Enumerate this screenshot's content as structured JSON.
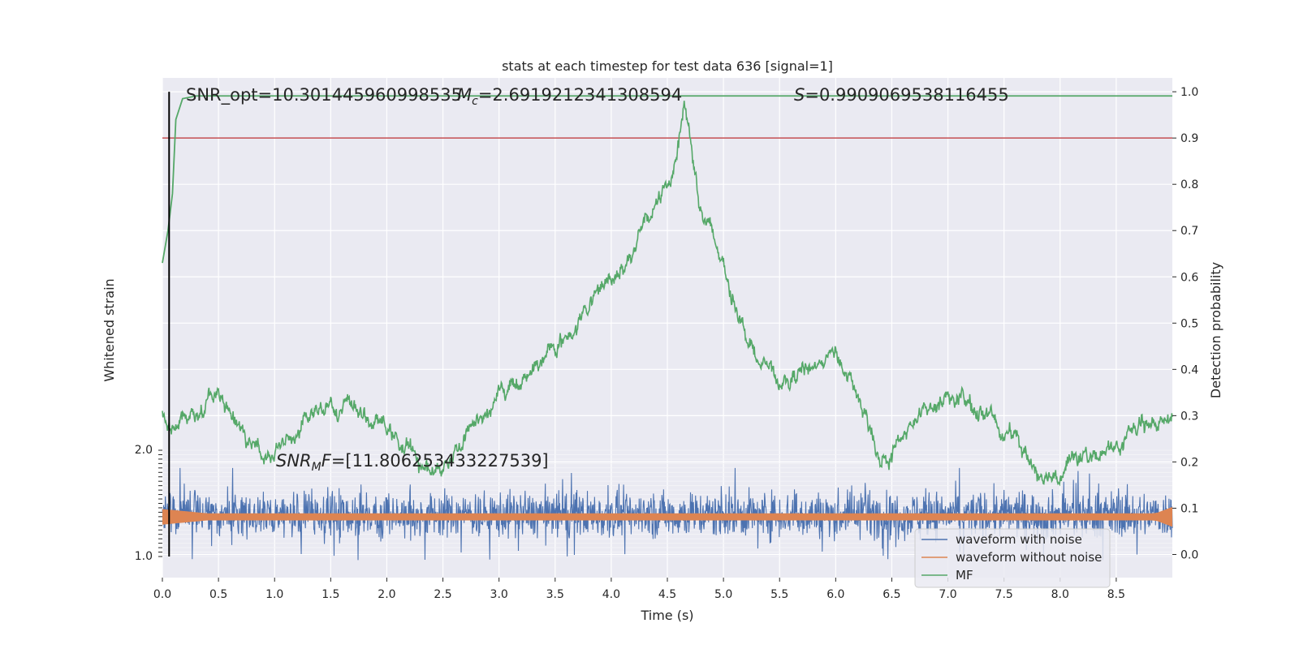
{
  "chart_data": {
    "type": "line",
    "title": "stats at each timestep for test data 636 [signal=1]",
    "xlabel": "Time (s)",
    "ylabel_left": "Whitened strain",
    "ylabel_right": "Detection probability",
    "xlim": [
      0,
      9
    ],
    "xticks": [
      "0.0",
      "0.5",
      "1.0",
      "1.5",
      "2.0",
      "2.5",
      "3.0",
      "3.5",
      "4.0",
      "4.5",
      "5.0",
      "5.5",
      "6.0",
      "6.5",
      "7.0",
      "7.5",
      "8.0",
      "8.5"
    ],
    "xtick_values": [
      0,
      0.5,
      1,
      1.5,
      2,
      2.5,
      3,
      3.5,
      4,
      4.5,
      5,
      5.5,
      6,
      6.5,
      7,
      7.5,
      8,
      8.5
    ],
    "right_ylim": [
      -0.05,
      1.03
    ],
    "right_yticks": [
      "0.0",
      "0.1",
      "0.2",
      "0.3",
      "0.4",
      "0.5",
      "0.6",
      "0.7",
      "0.8",
      "0.9",
      "1.0"
    ],
    "right_ytick_values": [
      0,
      0.1,
      0.2,
      0.3,
      0.4,
      0.5,
      0.6,
      0.7,
      0.8,
      0.9,
      1.0
    ],
    "left_ylim": [
      -1.0,
      2.0
    ],
    "left_ytick_top": "2.0",
    "left_ytick_bottom": "1.0",
    "threshold": 0.9,
    "marker_time": 0.06,
    "annotations": {
      "snr_opt": "SNR_opt=10.301445960998535",
      "mc": "M_c=2.6919212341308594",
      "s": "S=0.9909069538116455",
      "snr_mf": "SNR_MF=[11.806253433227539]"
    },
    "mf_key_points": [
      [
        0.0,
        0.3
      ],
      [
        0.3,
        0.3
      ],
      [
        0.45,
        0.35
      ],
      [
        0.8,
        0.22
      ],
      [
        1.2,
        0.25
      ],
      [
        1.5,
        0.34
      ],
      [
        2.0,
        0.27
      ],
      [
        2.4,
        0.17
      ],
      [
        2.8,
        0.29
      ],
      [
        3.2,
        0.38
      ],
      [
        3.6,
        0.47
      ],
      [
        4.0,
        0.6
      ],
      [
        4.3,
        0.7
      ],
      [
        4.55,
        0.83
      ],
      [
        4.65,
        0.99
      ],
      [
        4.8,
        0.75
      ],
      [
        5.0,
        0.62
      ],
      [
        5.3,
        0.43
      ],
      [
        5.5,
        0.36
      ],
      [
        6.0,
        0.44
      ],
      [
        6.4,
        0.21
      ],
      [
        7.0,
        0.35
      ],
      [
        7.5,
        0.28
      ],
      [
        7.8,
        0.18
      ],
      [
        8.5,
        0.23
      ],
      [
        9.0,
        0.3
      ]
    ],
    "prob_key_points": [
      [
        0.0,
        0.63
      ],
      [
        0.05,
        0.7
      ],
      [
        0.09,
        0.78
      ],
      [
        0.12,
        0.94
      ],
      [
        0.18,
        0.985
      ],
      [
        0.3,
        0.991
      ],
      [
        9.0,
        0.991
      ]
    ],
    "legend": {
      "position": "lower-right",
      "entries": [
        {
          "label": "waveform with noise",
          "color": "#4c72b0"
        },
        {
          "label": "waveform without noise",
          "color": "#dd8452"
        },
        {
          "label": "MF",
          "color": "#55a868"
        }
      ]
    },
    "colors": {
      "noise": "#4c72b0",
      "clean": "#dd8452",
      "mf": "#55a868",
      "prob": "#55a868",
      "threshold": "#c44e52",
      "marker": "#000000",
      "axes_bg": "#eaeaf2",
      "grid": "#ffffff"
    }
  }
}
